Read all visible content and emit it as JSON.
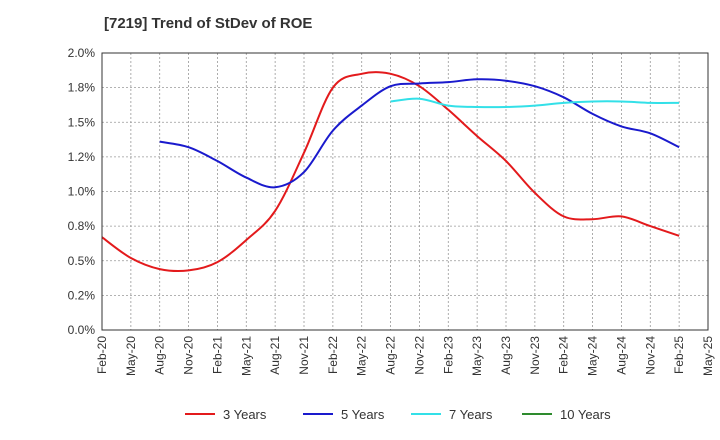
{
  "chart_data": {
    "type": "line",
    "title": "[7219]  Trend of StDev of ROE",
    "xlabel": "",
    "ylabel": "",
    "x": [
      "Feb-20",
      "May-20",
      "Aug-20",
      "Nov-20",
      "Feb-21",
      "May-21",
      "Aug-21",
      "Nov-21",
      "Feb-22",
      "May-22",
      "Aug-22",
      "Nov-22",
      "Feb-23",
      "May-23",
      "Aug-23",
      "Nov-23",
      "Feb-24",
      "May-24",
      "Aug-24",
      "Nov-24",
      "Feb-25",
      "May-25"
    ],
    "ylim": [
      0,
      2.0
    ],
    "yticks": [
      "0.0%",
      "0.2%",
      "0.5%",
      "0.8%",
      "1.0%",
      "1.2%",
      "1.5%",
      "1.8%",
      "2.0%"
    ],
    "grid": true,
    "legend_position": "bottom",
    "series": [
      {
        "name": "3 Years",
        "color": "#e31a1c",
        "values": [
          0.67,
          0.52,
          0.44,
          0.43,
          0.49,
          0.65,
          0.86,
          1.28,
          1.75,
          1.85,
          1.85,
          1.76,
          1.59,
          1.4,
          1.22,
          0.99,
          0.82,
          0.8,
          0.82,
          0.75,
          0.68,
          null
        ]
      },
      {
        "name": "5 Years",
        "color": "#1a1acd",
        "values": [
          null,
          null,
          1.36,
          1.32,
          1.22,
          1.1,
          1.03,
          1.14,
          1.44,
          1.62,
          1.76,
          1.78,
          1.79,
          1.81,
          1.8,
          1.76,
          1.68,
          1.56,
          1.47,
          1.42,
          1.32,
          null
        ]
      },
      {
        "name": "7 Years",
        "color": "#33e0e8",
        "values": [
          null,
          null,
          null,
          null,
          null,
          null,
          null,
          null,
          null,
          null,
          1.65,
          1.67,
          1.62,
          1.61,
          1.61,
          1.62,
          1.64,
          1.65,
          1.65,
          1.64,
          1.64,
          null
        ]
      },
      {
        "name": "10 Years",
        "color": "#2e8b2e",
        "values": [
          null,
          null,
          null,
          null,
          null,
          null,
          null,
          null,
          null,
          null,
          null,
          null,
          null,
          null,
          null,
          null,
          null,
          null,
          null,
          null,
          null,
          null
        ]
      }
    ]
  }
}
